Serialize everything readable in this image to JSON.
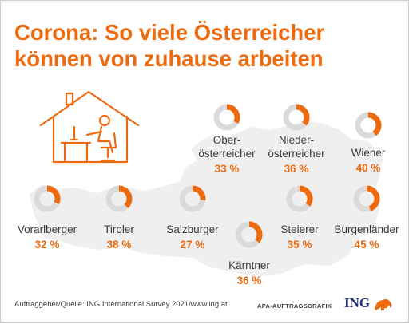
{
  "title_line1": "Corona: So viele Österreicher",
  "title_line2": "können von zuhause arbeiten",
  "source": "Auftraggeber/Quelle: ING International Survey 2021/www.ing.at",
  "agency": "APA-AUFTRAGSGRAFIK",
  "brand": "ING",
  "icons": [
    "home-office-icon",
    "ing-lion-logo"
  ],
  "colors": {
    "accent": "#ee6a0f",
    "ring_track": "#dadada",
    "map": "#efefef",
    "text": "#3a3a3a",
    "brand": "#1f2f7a"
  },
  "chart_data": {
    "type": "donut",
    "unit": "%",
    "regions": [
      {
        "id": "vorarlberg",
        "label": "Vorarlberger",
        "value": 32,
        "value_text": "32 %"
      },
      {
        "id": "tirol",
        "label": "Tiroler",
        "value": 38,
        "value_text": "38 %"
      },
      {
        "id": "salzburg",
        "label": "Salzburger",
        "value": 27,
        "value_text": "27 %"
      },
      {
        "id": "oberoesterreich",
        "label": "Ober-\nösterreicher",
        "value": 33,
        "value_text": "33 %"
      },
      {
        "id": "niederoesterreich",
        "label": "Nieder-\nösterreicher",
        "value": 36,
        "value_text": "36 %"
      },
      {
        "id": "wien",
        "label": "Wiener",
        "value": 40,
        "value_text": "40 %"
      },
      {
        "id": "steiermark",
        "label": "Steierer",
        "value": 35,
        "value_text": "35 %"
      },
      {
        "id": "burgenland",
        "label": "Burgenländer",
        "value": 45,
        "value_text": "45 %"
      },
      {
        "id": "kaernten",
        "label": "Kärntner",
        "value": 36,
        "value_text": "36 %"
      }
    ]
  }
}
